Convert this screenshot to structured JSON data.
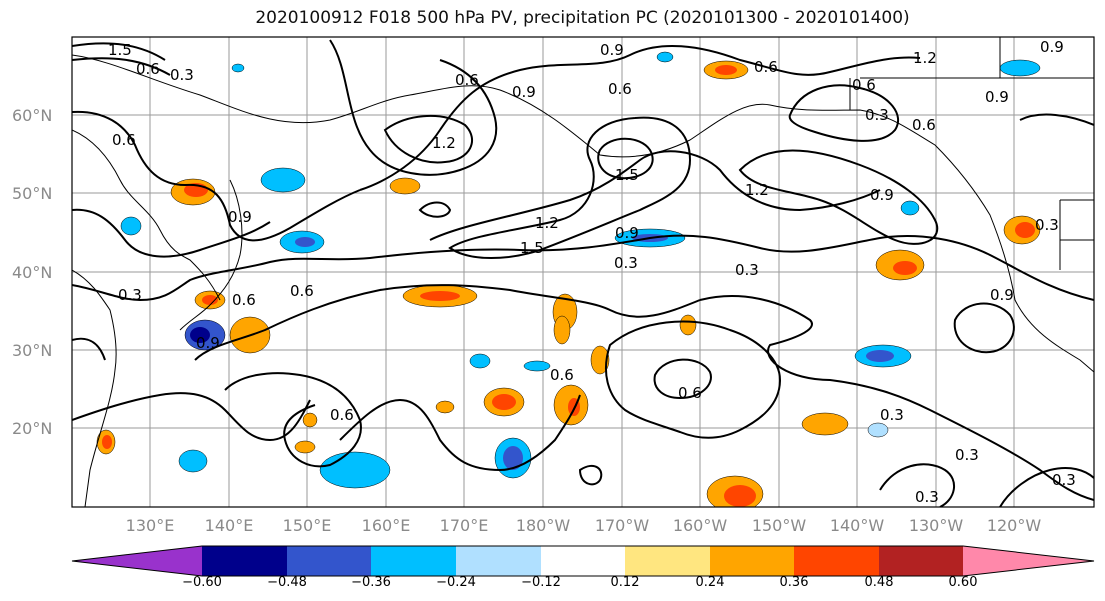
{
  "title": "2020100912 F018 500 hPa PV, precipitation PC (2020101300 - 2020101400)",
  "lat_labels": [
    "60°N",
    "50°N",
    "40°N",
    "30°N",
    "20°N"
  ],
  "lon_labels": [
    "130°E",
    "140°E",
    "150°E",
    "160°E",
    "170°E",
    "180°W",
    "170°W",
    "160°W",
    "150°W",
    "140°W",
    "130°W",
    "120°W"
  ],
  "contour_labels": [
    "1.5",
    "0.6",
    "0.3",
    "0.6",
    "0.9",
    "1.2",
    "0.9",
    "0.6",
    "0.9",
    "0.6",
    "1.5",
    "1.2",
    "1.5",
    "0.9",
    "0.3",
    "0.3",
    "0.6",
    "0.3",
    "0.6",
    "0.6",
    "0.9",
    "0.6",
    "1.2",
    "0.9",
    "0.6",
    "1.2",
    "0.9",
    "0.3",
    "0.3",
    "0.3",
    "0.3",
    "0.6",
    "0.3",
    "0.9",
    "0.3",
    "0.6",
    "0.6",
    "0.9"
  ],
  "colorbar": {
    "colors": [
      "#9932cc",
      "#00008b",
      "#3355cc",
      "#00bfff",
      "#b0e0ff",
      "#ffffff",
      "#ffe680",
      "#ffa500",
      "#ff4500",
      "#b22222",
      "#ff88aa"
    ],
    "tick_labels": [
      "−0.60",
      "−0.48",
      "−0.36",
      "−0.24",
      "−0.12",
      "0.12",
      "0.24",
      "0.36",
      "0.48",
      "0.60"
    ]
  },
  "map_data": {
    "extent": {
      "lon_min": 120,
      "lon_max": 250,
      "lat_min": 10,
      "lat_max": 70
    },
    "field": "500 hPa PV contours with precipitation PC shading",
    "contour_interval": 0.3
  }
}
